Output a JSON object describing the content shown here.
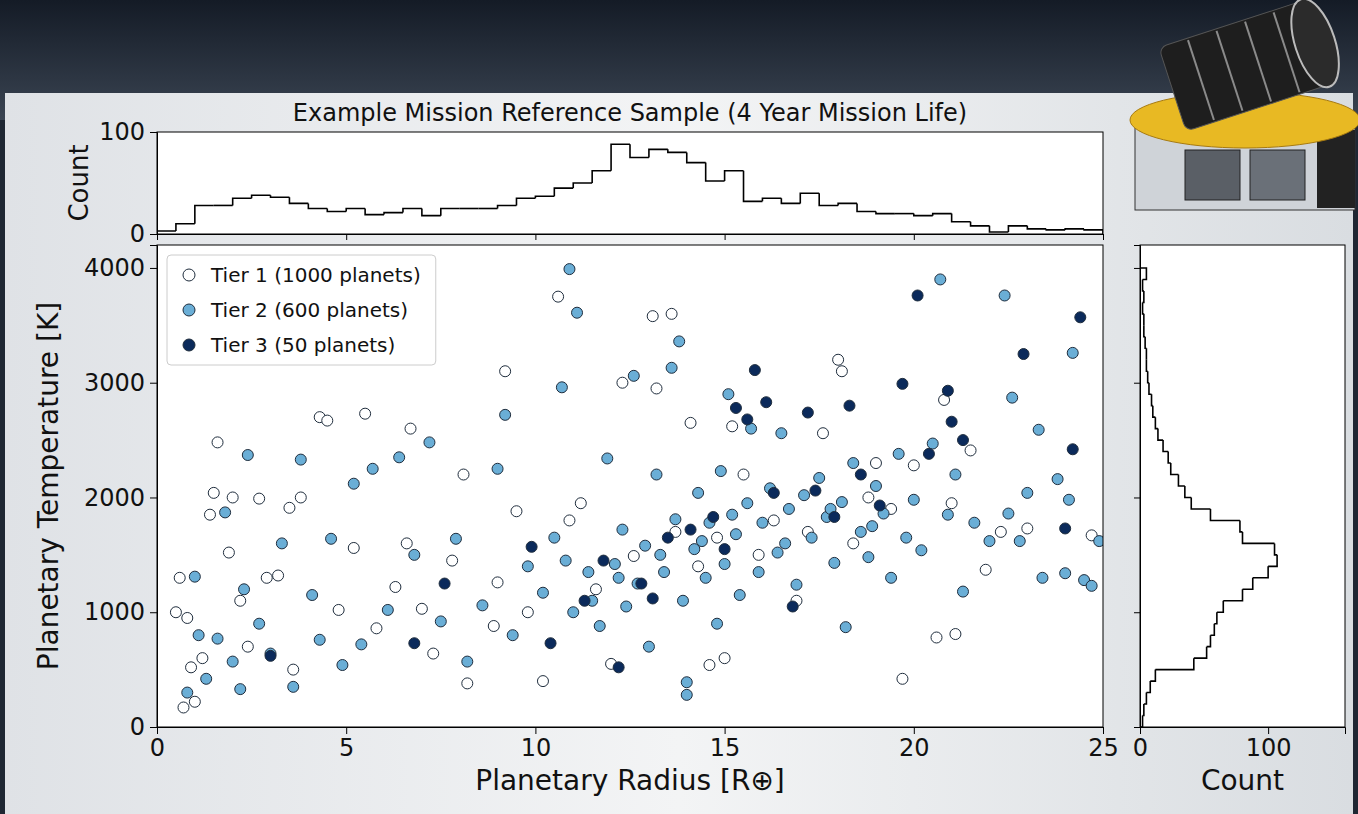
{
  "chart_data": [
    {
      "type": "scatter",
      "title": "Example Mission Reference Sample (4 Year Mission Life)",
      "x_label": "Planetary Radius [R⊕]",
      "y_label": "Planetary Temperature [K]",
      "xlim": [
        0,
        25
      ],
      "ylim": [
        0,
        4200
      ],
      "xticks": [
        0,
        5,
        10,
        15,
        20,
        25
      ],
      "yticks": [
        0,
        1000,
        2000,
        3000,
        4000
      ],
      "legend": "upper left",
      "series": [
        {
          "name": "Tier 1 (1000 planets)",
          "color": "#ffffff",
          "marker": "circle",
          "x": [
            0.6,
            0.5,
            0.8,
            0.7,
            1.0,
            0.9,
            1.2,
            1.4,
            1.6,
            1.5,
            1.9,
            2.0,
            2.2,
            2.4,
            2.7,
            2.9,
            3.2,
            3.5,
            3.8,
            3.6,
            4.3,
            4.5,
            4.8,
            5.2,
            5.5,
            5.8,
            6.3,
            6.6,
            6.7,
            7.0,
            7.3,
            7.8,
            8.1,
            8.2,
            8.9,
            9.2,
            9.0,
            9.5,
            9.8,
            10.2,
            10.6,
            10.9,
            11.2,
            11.6,
            12.0,
            12.3,
            12.6,
            13.1,
            13.2,
            13.6,
            13.7,
            14.1,
            14.3,
            14.6,
            15.0,
            15.2,
            15.5,
            15.9,
            16.3,
            16.9,
            17.2,
            17.6,
            18.0,
            18.1,
            18.4,
            19.0,
            19.4,
            19.7,
            20.0,
            20.6,
            20.8,
            21.1,
            21.0,
            21.5,
            21.9,
            22.3,
            23.0,
            24.7,
            18.8,
            14.8
          ],
          "values": [
            1300,
            1000,
            950,
            170,
            220,
            520,
            600,
            1850,
            2480,
            2040,
            1520,
            2000,
            1100,
            700,
            1990,
            1300,
            1320,
            1910,
            2000,
            500,
            2700,
            2670,
            1020,
            1560,
            2730,
            860,
            1220,
            1600,
            2600,
            1030,
            640,
            1450,
            2200,
            380,
            880,
            3100,
            1260,
            1880,
            1000,
            400,
            3750,
            1800,
            1950,
            1200,
            550,
            3000,
            1490,
            3580,
            2950,
            3600,
            1700,
            2650,
            1400,
            540,
            600,
            2620,
            2200,
            1500,
            1800,
            1100,
            1700,
            2560,
            3200,
            3100,
            1600,
            2300,
            1900,
            420,
            2280,
            780,
            2850,
            810,
            1950,
            2410,
            1370,
            1700,
            1730,
            1670,
            2000,
            1650
          ]
        },
        {
          "name": "Tier 2 (600 planets)",
          "color": "#6aaed6",
          "marker": "circle",
          "x": [
            0.8,
            1.0,
            1.1,
            1.3,
            1.6,
            1.8,
            2.0,
            2.2,
            2.3,
            2.4,
            2.7,
            3.0,
            3.3,
            3.6,
            3.8,
            4.1,
            4.3,
            4.6,
            4.9,
            5.2,
            5.4,
            5.7,
            6.1,
            6.4,
            6.8,
            7.2,
            7.5,
            7.9,
            8.2,
            8.6,
            9.0,
            9.2,
            9.4,
            9.8,
            10.2,
            10.5,
            10.7,
            10.9,
            11.1,
            11.0,
            11.4,
            11.7,
            11.9,
            12.1,
            12.3,
            12.4,
            12.6,
            12.7,
            12.9,
            13.0,
            13.2,
            13.4,
            13.6,
            13.7,
            13.8,
            13.9,
            14.0,
            14.0,
            14.2,
            14.3,
            14.5,
            14.6,
            14.8,
            14.9,
            15.0,
            15.1,
            15.3,
            15.4,
            15.6,
            15.7,
            15.9,
            16.0,
            16.2,
            16.4,
            16.5,
            16.7,
            16.9,
            17.1,
            17.3,
            17.5,
            17.7,
            17.9,
            18.1,
            18.2,
            18.4,
            18.6,
            18.8,
            19.0,
            19.2,
            19.4,
            19.6,
            19.8,
            20.0,
            20.2,
            20.5,
            20.7,
            20.9,
            21.1,
            21.3,
            21.6,
            22.0,
            22.4,
            22.5,
            22.6,
            22.8,
            23.0,
            23.3,
            23.4,
            23.8,
            24.0,
            24.1,
            24.2,
            24.5,
            24.9,
            24.7,
            12.2,
            13.3,
            14.4,
            15.2,
            16.6,
            17.8,
            18.9,
            11.5,
            10.8
          ],
          "values": [
            300,
            1310,
            800,
            420,
            770,
            1870,
            570,
            330,
            1200,
            2370,
            900,
            640,
            1600,
            350,
            2330,
            1150,
            760,
            1640,
            540,
            2120,
            720,
            2250,
            1020,
            2350,
            1500,
            2480,
            920,
            1640,
            570,
            1060,
            2250,
            2720,
            800,
            1400,
            1170,
            1650,
            2960,
            3990,
            3610,
            1000,
            1350,
            880,
            2340,
            1420,
            1720,
            1050,
            3060,
            1250,
            1580,
            700,
            2200,
            1350,
            3130,
            1810,
            3360,
            1100,
            280,
            390,
            1550,
            2040,
            1300,
            1780,
            900,
            2230,
            1420,
            2900,
            1680,
            1150,
            1950,
            2600,
            1350,
            1780,
            2080,
            1520,
            2560,
            1900,
            1240,
            2020,
            1650,
            2170,
            1830,
            1430,
            1960,
            870,
            2300,
            1700,
            1480,
            2100,
            1860,
            1300,
            2380,
            1650,
            1980,
            1540,
            2470,
            3900,
            1850,
            2200,
            1180,
            1780,
            1620,
            3760,
            1860,
            2870,
            1620,
            2040,
            2590,
            1300,
            2160,
            1340,
            1980,
            3260,
            1280,
            1620,
            1230,
            1300,
            1500,
            1620,
            1850,
            1600,
            1900,
            1750,
            1100,
            1450
          ]
        },
        {
          "name": "Tier 3 (50 planets)",
          "color": "#0b2a5b",
          "marker": "circle",
          "x": [
            3.0,
            7.6,
            9.9,
            10.4,
            11.3,
            11.8,
            12.2,
            12.8,
            13.1,
            13.5,
            14.1,
            14.7,
            15.0,
            15.3,
            15.6,
            15.8,
            16.1,
            16.8,
            17.2,
            17.4,
            17.9,
            18.3,
            18.6,
            19.1,
            19.7,
            20.1,
            20.4,
            20.9,
            21.0,
            21.3,
            22.9,
            24.0,
            24.2,
            24.4,
            6.8,
            16.3
          ],
          "values": [
            620,
            1250,
            1570,
            730,
            1100,
            1450,
            520,
            1250,
            1120,
            1650,
            1720,
            1830,
            1550,
            2780,
            2680,
            3110,
            2830,
            1050,
            2740,
            2060,
            1830,
            2800,
            2200,
            1930,
            2990,
            3760,
            2380,
            2930,
            2660,
            2500,
            3250,
            1730,
            2420,
            3570,
            730,
            2040
          ]
        }
      ]
    },
    {
      "type": "histogram",
      "y_label": "Count",
      "color": "#000000",
      "bins": [
        0,
        0.5,
        1,
        1.5,
        2,
        2.5,
        3,
        3.5,
        4,
        4.5,
        5,
        5.5,
        6,
        6.5,
        7,
        7.5,
        8,
        8.5,
        9,
        9.5,
        10,
        10.5,
        11,
        11.5,
        12,
        12.5,
        13,
        13.5,
        14,
        14.5,
        15,
        15.5,
        16,
        16.5,
        17,
        17.5,
        18,
        18.5,
        19,
        19.5,
        20,
        20.5,
        21,
        21.5,
        22,
        22.5,
        23,
        23.5,
        24,
        24.5,
        25
      ],
      "values": [
        3,
        10,
        28,
        28,
        35,
        38,
        36,
        30,
        25,
        22,
        25,
        19,
        21,
        25,
        18,
        25,
        25,
        25,
        28,
        35,
        37,
        45,
        50,
        62,
        88,
        75,
        83,
        80,
        70,
        52,
        62,
        32,
        35,
        30,
        40,
        28,
        30,
        22,
        20,
        20,
        18,
        20,
        12,
        8,
        2,
        8,
        5,
        4,
        5,
        4
      ],
      "xlim": [
        0,
        25
      ],
      "ylim": [
        0,
        100
      ],
      "xticks": [
        0,
        5,
        10,
        15,
        20,
        25
      ],
      "yticks": [
        0,
        100
      ],
      "tick_labels": "y"
    },
    {
      "type": "histogram",
      "orientation": "horizontal",
      "x_label": "Count",
      "color": "#000000",
      "bins": [
        0,
        100,
        200,
        300,
        400,
        500,
        600,
        700,
        800,
        900,
        1000,
        1100,
        1200,
        1300,
        1400,
        1500,
        1600,
        1700,
        1800,
        1900,
        2000,
        2100,
        2200,
        2300,
        2400,
        2500,
        2600,
        2700,
        2800,
        2900,
        3000,
        3100,
        3200,
        3300,
        3400,
        3500,
        3600,
        3700,
        3800,
        3900,
        4000
      ],
      "values": [
        2,
        3,
        5,
        8,
        12,
        42,
        52,
        55,
        58,
        60,
        65,
        80,
        88,
        100,
        107,
        105,
        80,
        78,
        55,
        40,
        35,
        30,
        24,
        22,
        18,
        14,
        12,
        10,
        9,
        7,
        6,
        5,
        5,
        4,
        3,
        3,
        2,
        3,
        2,
        5
      ],
      "xlim": [
        0,
        160
      ],
      "ylim": [
        0,
        4200
      ],
      "xticks": [
        0,
        100
      ],
      "yticks": [
        0,
        1000,
        2000,
        3000,
        4000
      ],
      "tick_labels": "x"
    }
  ]
}
